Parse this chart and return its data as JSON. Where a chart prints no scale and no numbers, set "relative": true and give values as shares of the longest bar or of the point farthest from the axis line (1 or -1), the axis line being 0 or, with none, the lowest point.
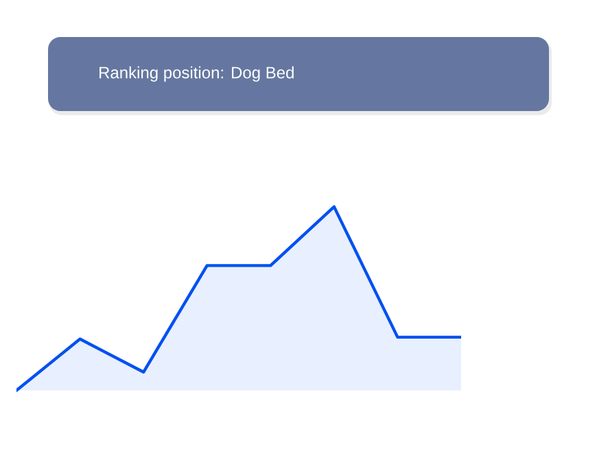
{
  "chart_data": {
    "type": "area",
    "title": "Ranking position: Dog Bed",
    "relative": true,
    "categories": [
      null,
      null,
      null,
      null,
      null,
      null,
      null,
      null
    ],
    "series": [
      {
        "color": "#0050f0",
        "values": [
          0,
          0.28,
          0.1,
          0.68,
          0.68,
          1,
          0.29,
          0.29
        ]
      }
    ]
  }
}
